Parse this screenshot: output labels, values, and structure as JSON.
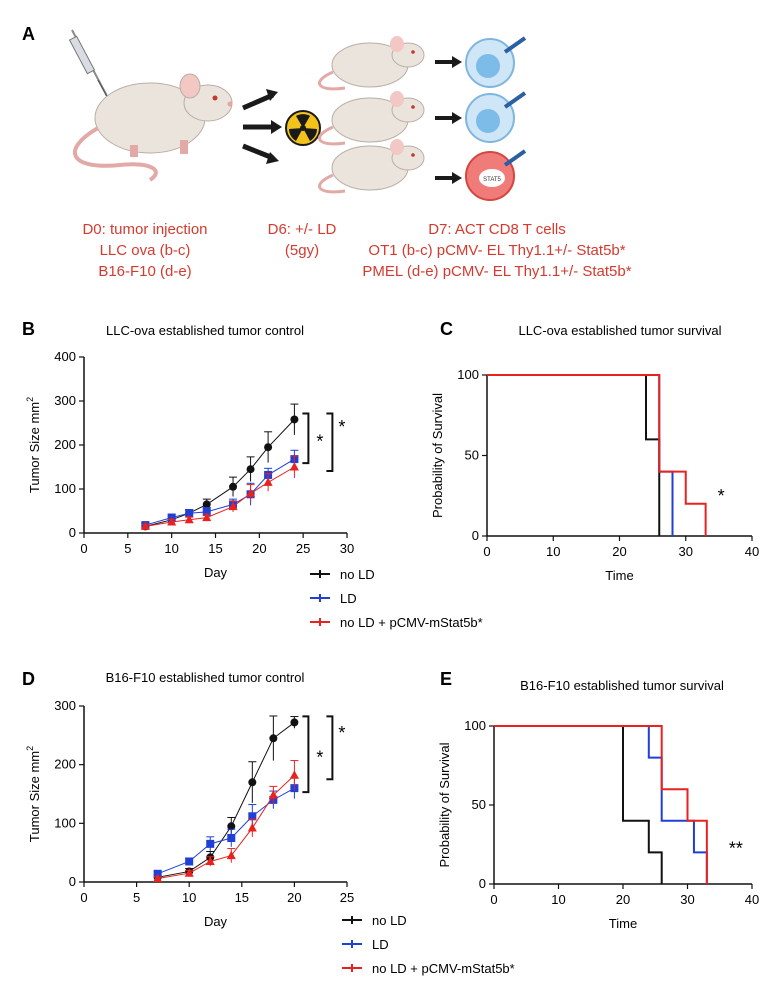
{
  "panels": {
    "A": "A",
    "B": "B",
    "C": "C",
    "D": "D",
    "E": "E"
  },
  "schematic": {
    "col1": [
      "D0: tumor injection",
      "LLC ova (b-c)",
      "B16-F10 (d-e)"
    ],
    "col2": [
      "D6: +/- LD",
      "(5gy)"
    ],
    "col3": [
      "D7: ACT CD8 T cells",
      "OT1 (b-c) pCMV- EL Thy1.1+/- Stat5b*",
      "PMEL (d-e) pCMV- EL Thy1.1+/- Stat5b*"
    ],
    "cell_label": "STAT5",
    "caption_color": "#d63a2f"
  },
  "legend": {
    "items": [
      "no LD",
      "LD",
      "no LD + pCMV-mStat5b*"
    ]
  },
  "colors": {
    "noLD": "#111111",
    "LD": "#1f3fd6",
    "stat5b": "#e8231f"
  },
  "chart_data": [
    {
      "id": "B",
      "type": "line",
      "title": "LLC-ova established tumor control",
      "xlabel": "Day",
      "ylabel": "Tumor Size mm",
      "ylabel_sup": "2",
      "xlim": [
        0,
        30
      ],
      "ylim": [
        0,
        400
      ],
      "xticks": [
        0,
        5,
        10,
        15,
        20,
        25,
        30
      ],
      "yticks": [
        0,
        100,
        200,
        300,
        400
      ],
      "significance": [
        "*",
        "*"
      ],
      "series": [
        {
          "name": "no LD",
          "marker": "circle",
          "x": [
            7,
            10,
            12,
            14,
            17,
            19,
            21,
            24
          ],
          "y": [
            15,
            30,
            45,
            65,
            105,
            145,
            195,
            258
          ],
          "err": [
            6,
            8,
            8,
            12,
            22,
            28,
            35,
            35
          ]
        },
        {
          "name": "LD",
          "marker": "square",
          "x": [
            7,
            10,
            12,
            14,
            17,
            19,
            21,
            24
          ],
          "y": [
            18,
            35,
            45,
            48,
            65,
            88,
            132,
            168
          ],
          "err": [
            5,
            8,
            8,
            10,
            12,
            25,
            15,
            20
          ]
        },
        {
          "name": "no LD + pCMV-mStat5b*",
          "marker": "triangle",
          "x": [
            7,
            10,
            12,
            14,
            17,
            19,
            21,
            24
          ],
          "y": [
            15,
            25,
            30,
            35,
            60,
            90,
            115,
            150
          ],
          "err": [
            5,
            6,
            6,
            8,
            12,
            20,
            20,
            25
          ]
        }
      ]
    },
    {
      "id": "C",
      "type": "line",
      "style": "step",
      "title": "LLC-ova established tumor survival",
      "xlabel": "Time",
      "ylabel": "Probability of Survival",
      "xlim": [
        0,
        40
      ],
      "ylim": [
        0,
        100
      ],
      "xticks": [
        0,
        10,
        20,
        30,
        40
      ],
      "yticks": [
        0,
        50,
        100
      ],
      "significance": [
        "*"
      ],
      "series": [
        {
          "name": "no LD",
          "x": [
            0,
            24,
            26
          ],
          "y": [
            100,
            60,
            0
          ]
        },
        {
          "name": "LD",
          "x": [
            0,
            26,
            28
          ],
          "y": [
            100,
            40,
            0
          ]
        },
        {
          "name": "no LD + pCMV-mStat5b*",
          "x": [
            0,
            26,
            30,
            33
          ],
          "y": [
            100,
            40,
            20,
            0
          ]
        }
      ]
    },
    {
      "id": "D",
      "type": "line",
      "title": "B16-F10 established tumor control",
      "xlabel": "Day",
      "ylabel": "Tumor Size mm",
      "ylabel_sup": "2",
      "xlim": [
        0,
        25
      ],
      "ylim": [
        0,
        300
      ],
      "xticks": [
        0,
        5,
        10,
        15,
        20,
        25
      ],
      "yticks": [
        0,
        100,
        200,
        300
      ],
      "significance": [
        "*",
        "*"
      ],
      "series": [
        {
          "name": "no LD",
          "marker": "circle",
          "x": [
            7,
            10,
            12,
            14,
            16,
            18,
            20
          ],
          "y": [
            8,
            18,
            42,
            95,
            170,
            245,
            272
          ],
          "err": [
            4,
            5,
            10,
            15,
            35,
            38,
            10
          ]
        },
        {
          "name": "LD",
          "marker": "square",
          "x": [
            7,
            10,
            12,
            14,
            16,
            18,
            20
          ],
          "y": [
            14,
            35,
            65,
            75,
            112,
            140,
            160
          ],
          "err": [
            5,
            5,
            12,
            15,
            20,
            15,
            18
          ]
        },
        {
          "name": "no LD + pCMV-mStat5b*",
          "marker": "triangle",
          "x": [
            7,
            10,
            12,
            14,
            16,
            18,
            20
          ],
          "y": [
            6,
            15,
            35,
            45,
            92,
            148,
            182
          ],
          "err": [
            3,
            5,
            8,
            12,
            15,
            15,
            25
          ]
        }
      ]
    },
    {
      "id": "E",
      "type": "line",
      "style": "step",
      "title": "B16-F10 established tumor survival",
      "xlabel": "Time",
      "ylabel": "Probability of Survival",
      "xlim": [
        0,
        40
      ],
      "ylim": [
        0,
        100
      ],
      "xticks": [
        0,
        10,
        20,
        30,
        40
      ],
      "yticks": [
        0,
        50,
        100
      ],
      "significance": [
        "**"
      ],
      "series": [
        {
          "name": "no LD",
          "x": [
            0,
            20,
            24,
            26
          ],
          "y": [
            100,
            40,
            20,
            0
          ]
        },
        {
          "name": "LD",
          "x": [
            0,
            24,
            26,
            31,
            33
          ],
          "y": [
            100,
            80,
            40,
            20,
            0
          ]
        },
        {
          "name": "no LD + pCMV-mStat5b*",
          "x": [
            0,
            26,
            30,
            33
          ],
          "y": [
            100,
            60,
            40,
            0
          ]
        }
      ]
    }
  ]
}
